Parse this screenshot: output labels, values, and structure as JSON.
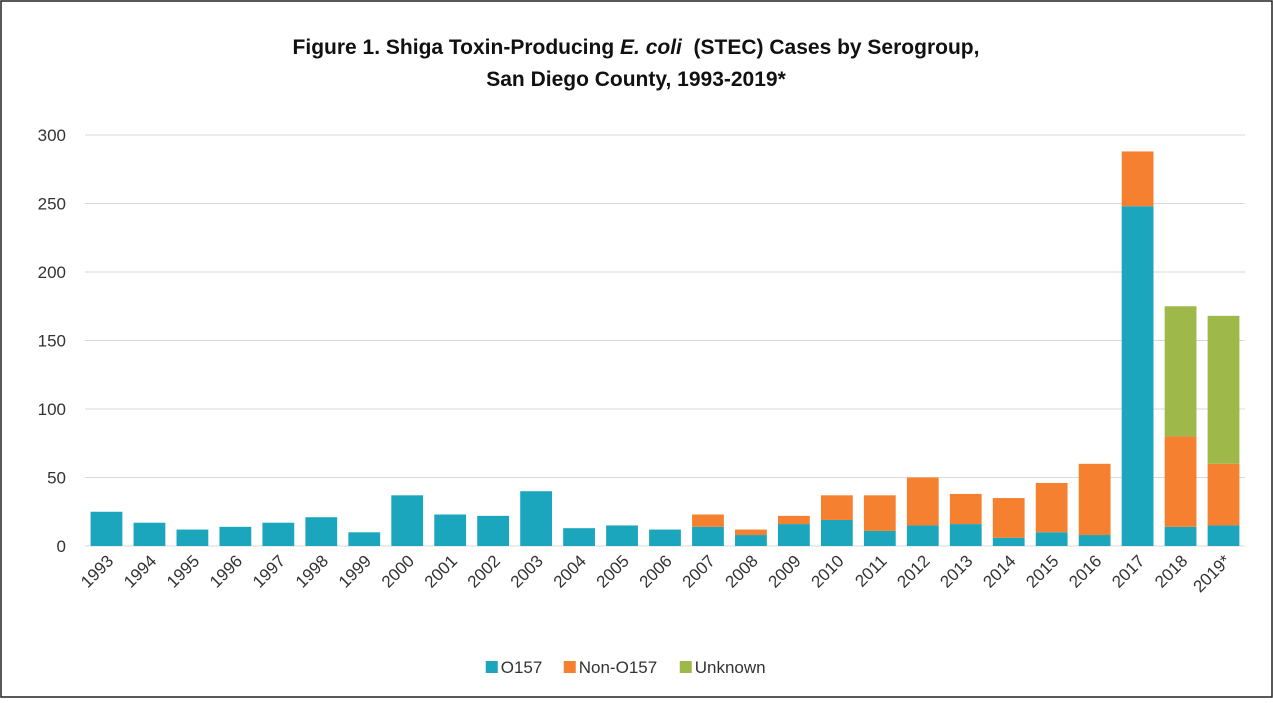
{
  "chart_data": {
    "type": "stacked_bar",
    "title": [
      "Figure 1. Shiga Toxin-Producing ",
      "E. coli",
      "  (STEC) Cases by Serogroup,",
      "San Diego County, 1993-2019*"
    ],
    "categories": [
      "1993",
      "1994",
      "1995",
      "1996",
      "1997",
      "1998",
      "1999",
      "2000",
      "2001",
      "2002",
      "2003",
      "2004",
      "2005",
      "2006",
      "2007",
      "2008",
      "2009",
      "2010",
      "2011",
      "2012",
      "2013",
      "2014",
      "2015",
      "2016",
      "2017",
      "2018",
      "2019*"
    ],
    "series": [
      {
        "name": "O157",
        "color": "#1ba6bd",
        "values": [
          25,
          17,
          12,
          14,
          17,
          21,
          10,
          37,
          23,
          22,
          40,
          13,
          15,
          12,
          14,
          8,
          16,
          19,
          11,
          15,
          16,
          6,
          10,
          8,
          248,
          14,
          15
        ]
      },
      {
        "name": "Non-O157",
        "color": "#f48030",
        "values": [
          0,
          0,
          0,
          0,
          0,
          0,
          0,
          0,
          0,
          0,
          0,
          0,
          0,
          0,
          9,
          4,
          6,
          18,
          26,
          35,
          22,
          29,
          36,
          52,
          40,
          66,
          45
        ]
      },
      {
        "name": "Unknown",
        "color": "#9fb84a",
        "values": [
          0,
          0,
          0,
          0,
          0,
          0,
          0,
          0,
          0,
          0,
          0,
          0,
          0,
          0,
          0,
          0,
          0,
          0,
          0,
          0,
          0,
          0,
          0,
          0,
          0,
          95,
          108
        ]
      }
    ],
    "ylim": [
      0,
      300
    ],
    "yticks": [
      0,
      50,
      100,
      150,
      200,
      250,
      300
    ],
    "grid": true,
    "legend": "bottom"
  }
}
